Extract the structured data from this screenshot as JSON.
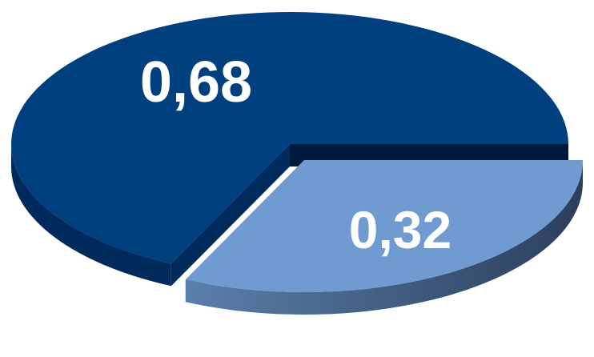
{
  "chart_data": {
    "type": "pie",
    "style": "3d-exploded",
    "categories": [
      "",
      ""
    ],
    "values": [
      0.68,
      0.32
    ],
    "data_labels": [
      "0,68",
      "0,32"
    ],
    "legend": "none",
    "exploded_slice_index": 1,
    "colors": {
      "slice_0_top": "#00407f",
      "slice_0_side": "#002a5c",
      "slice_0_inner": "#001a3d",
      "slice_1_top": "#6f9bd0",
      "slice_1_side_light": "#5a7fab",
      "slice_1_side_dark": "#2b3f5c"
    }
  }
}
